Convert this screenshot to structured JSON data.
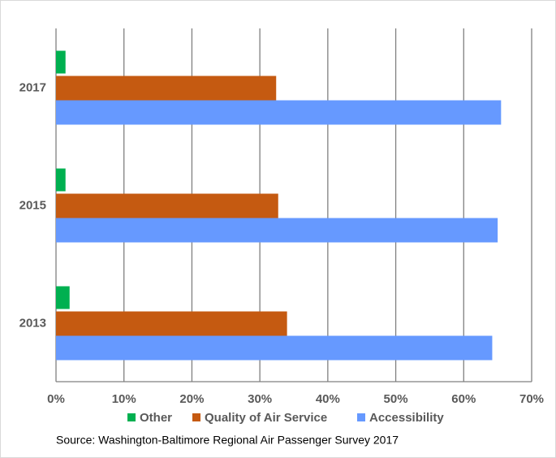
{
  "chart_data": {
    "type": "bar",
    "orientation": "horizontal",
    "categories": [
      "2013",
      "2015",
      "2017"
    ],
    "series": [
      {
        "name": "Other",
        "color": "#00b050",
        "values": [
          2.0,
          1.4,
          1.4
        ]
      },
      {
        "name": "Quality of Air Service",
        "color": "#c55a11",
        "values": [
          34.0,
          32.7,
          32.4
        ]
      },
      {
        "name": "Accessibility",
        "color": "#6699ff",
        "values": [
          64.2,
          65.0,
          65.5
        ]
      }
    ],
    "xlim": [
      0,
      70
    ],
    "xticks": [
      {
        "value": 0,
        "label": "0%"
      },
      {
        "value": 10,
        "label": "10%"
      },
      {
        "value": 20,
        "label": "20%"
      },
      {
        "value": 30,
        "label": "30%"
      },
      {
        "value": 40,
        "label": "40%"
      },
      {
        "value": 50,
        "label": "50%"
      },
      {
        "value": 60,
        "label": "60%"
      },
      {
        "value": 70,
        "label": "70%"
      }
    ],
    "grid": true,
    "legend": "bottom",
    "source": "Source: Washington-Baltimore Regional Air Passenger Survey 2017"
  }
}
